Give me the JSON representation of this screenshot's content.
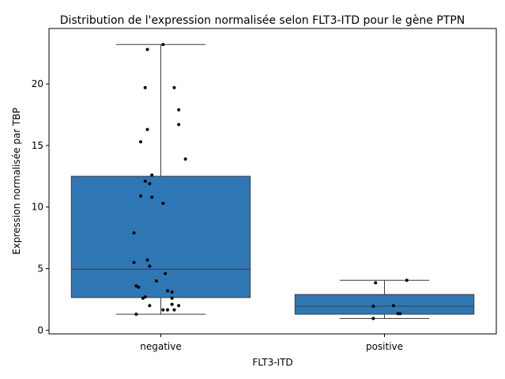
{
  "chart_data": {
    "type": "box",
    "title": "Distribution de l'expression normalisée selon FLT3-ITD pour le gène PTPN",
    "xlabel": "FLT3-ITD",
    "ylabel": "Expression normalisée par TBP",
    "categories": [
      "negative",
      "positive"
    ],
    "ylim": [
      -0.3,
      24.5
    ],
    "yticks": [
      0,
      5,
      10,
      15,
      20
    ],
    "grid": false,
    "box_color": "#2f77b4",
    "point_color": "#000000",
    "boxes": [
      {
        "category": "negative",
        "whisker_low": 1.3,
        "q1": 2.65,
        "median": 4.95,
        "q3": 12.5,
        "whisker_high": 23.2
      },
      {
        "category": "positive",
        "whisker_low": 0.95,
        "q1": 1.3,
        "median": 1.95,
        "q3": 2.9,
        "whisker_high": 4.05
      }
    ],
    "points": [
      {
        "category": "negative",
        "y": 23.2,
        "jitter": 0.01
      },
      {
        "category": "negative",
        "y": 22.8,
        "jitter": -0.06
      },
      {
        "category": "negative",
        "y": 19.7,
        "jitter": -0.07
      },
      {
        "category": "negative",
        "y": 19.7,
        "jitter": 0.06
      },
      {
        "category": "negative",
        "y": 17.9,
        "jitter": 0.08
      },
      {
        "category": "negative",
        "y": 16.7,
        "jitter": 0.08
      },
      {
        "category": "negative",
        "y": 16.3,
        "jitter": -0.06
      },
      {
        "category": "negative",
        "y": 15.3,
        "jitter": -0.09
      },
      {
        "category": "negative",
        "y": 13.9,
        "jitter": 0.11
      },
      {
        "category": "negative",
        "y": 12.6,
        "jitter": -0.04
      },
      {
        "category": "negative",
        "y": 12.1,
        "jitter": -0.07
      },
      {
        "category": "negative",
        "y": 11.9,
        "jitter": -0.05
      },
      {
        "category": "negative",
        "y": 10.9,
        "jitter": -0.09
      },
      {
        "category": "negative",
        "y": 10.8,
        "jitter": -0.04
      },
      {
        "category": "negative",
        "y": 10.3,
        "jitter": 0.01
      },
      {
        "category": "negative",
        "y": 7.9,
        "jitter": -0.12
      },
      {
        "category": "negative",
        "y": 5.7,
        "jitter": -0.06
      },
      {
        "category": "negative",
        "y": 5.5,
        "jitter": -0.12
      },
      {
        "category": "negative",
        "y": 5.2,
        "jitter": -0.05
      },
      {
        "category": "negative",
        "y": 4.6,
        "jitter": 0.02
      },
      {
        "category": "negative",
        "y": 4.0,
        "jitter": -0.02
      },
      {
        "category": "negative",
        "y": 3.6,
        "jitter": -0.11
      },
      {
        "category": "negative",
        "y": 3.5,
        "jitter": -0.1
      },
      {
        "category": "negative",
        "y": 3.2,
        "jitter": 0.03
      },
      {
        "category": "negative",
        "y": 3.1,
        "jitter": 0.05
      },
      {
        "category": "negative",
        "y": 2.7,
        "jitter": -0.07
      },
      {
        "category": "negative",
        "y": 2.6,
        "jitter": 0.05
      },
      {
        "category": "negative",
        "y": 2.6,
        "jitter": -0.08
      },
      {
        "category": "negative",
        "y": 2.1,
        "jitter": 0.05
      },
      {
        "category": "negative",
        "y": 2.0,
        "jitter": -0.05
      },
      {
        "category": "negative",
        "y": 2.0,
        "jitter": 0.08
      },
      {
        "category": "negative",
        "y": 1.65,
        "jitter": 0.01
      },
      {
        "category": "negative",
        "y": 1.65,
        "jitter": 0.03
      },
      {
        "category": "negative",
        "y": 1.65,
        "jitter": 0.06
      },
      {
        "category": "negative",
        "y": 1.3,
        "jitter": -0.11
      },
      {
        "category": "positive",
        "y": 4.05,
        "jitter": 0.1
      },
      {
        "category": "positive",
        "y": 3.85,
        "jitter": -0.04
      },
      {
        "category": "positive",
        "y": 2.0,
        "jitter": 0.04
      },
      {
        "category": "positive",
        "y": 1.95,
        "jitter": -0.05
      },
      {
        "category": "positive",
        "y": 1.35,
        "jitter": 0.06
      },
      {
        "category": "positive",
        "y": 1.35,
        "jitter": 0.07
      },
      {
        "category": "positive",
        "y": 0.95,
        "jitter": -0.05
      }
    ]
  }
}
